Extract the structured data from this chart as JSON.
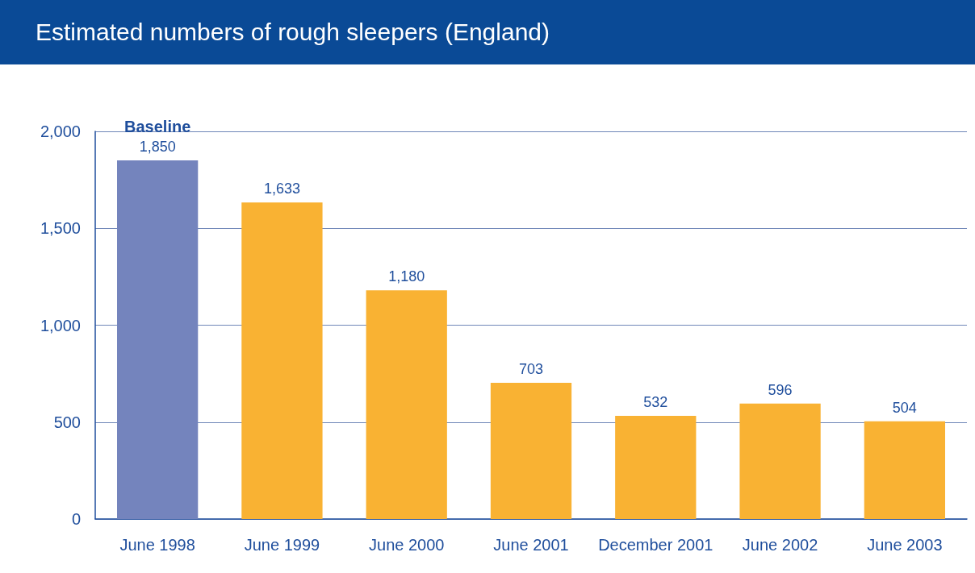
{
  "chart_data": {
    "type": "bar",
    "title": "Estimated numbers of rough sleepers (England)",
    "categories": [
      "June 1998",
      "June 1999",
      "June 2000",
      "June 2001",
      "December 2001",
      "June 2002",
      "June 2003"
    ],
    "values": [
      1850,
      1633,
      1180,
      703,
      532,
      596,
      504
    ],
    "value_labels": [
      "1,850",
      "1,633",
      "1,180",
      "703",
      "532",
      "596",
      "504"
    ],
    "colors": [
      "#7484bd",
      "#f9b233",
      "#f9b233",
      "#f9b233",
      "#f9b233",
      "#f9b233",
      "#f9b233"
    ],
    "annotations": [
      {
        "text": "Baseline",
        "x": "June 1998",
        "y": 1850
      }
    ],
    "ylim": [
      0,
      2000
    ],
    "yticks": [
      0,
      500,
      {
        "value": 1000,
        "label": "1,000"
      },
      {
        "value": 1500,
        "label": "1,500"
      },
      {
        "value": 2000,
        "label": "2,000"
      }
    ],
    "grid": "y"
  }
}
